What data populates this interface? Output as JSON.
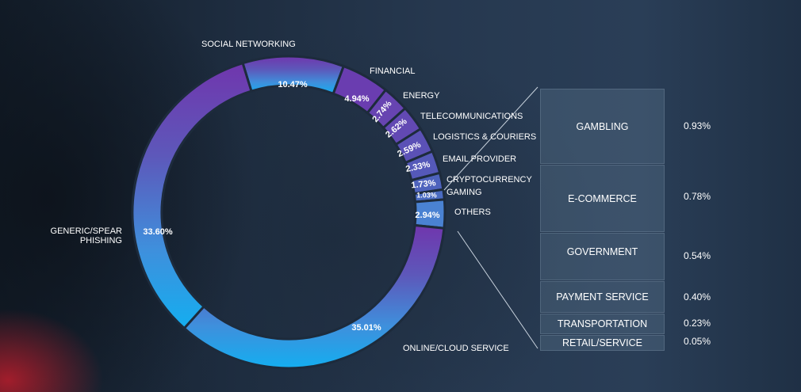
{
  "chart_data": {
    "type": "pie",
    "variant": "donut",
    "slices": [
      {
        "label": "SOCIAL NETWORKING",
        "value": 10.47,
        "color": "#6e3ab0"
      },
      {
        "label": "FINANCIAL",
        "value": 4.94,
        "color": "#6a3db0"
      },
      {
        "label": "ENERGY",
        "value": 2.74,
        "color": "#6744b1"
      },
      {
        "label": "TELECOMMUNICATIONS",
        "value": 2.62,
        "color": "#6249b3"
      },
      {
        "label": "LOGISTICS & COURIERS",
        "value": 2.59,
        "color": "#5b51b6"
      },
      {
        "label": "EMAIL PROVIDER",
        "value": 2.33,
        "color": "#5559b9"
      },
      {
        "label": "CRYPTOCURRENCY",
        "value": 1.73,
        "color": "#4e63bd"
      },
      {
        "label": "GAMING",
        "value": 1.03,
        "color": "#4a6bc1"
      },
      {
        "label": "OTHERS",
        "value": 2.94,
        "color": "#4a82d2"
      },
      {
        "label": "ONLINE/CLOUD SERVICE",
        "value": 35.01,
        "color": "#1aa3e8"
      },
      {
        "label": "GENERIC/SPEAR PHISHING",
        "value": 33.6,
        "color": "#4a8edb"
      }
    ],
    "others_breakdown": [
      {
        "label": "GAMBLING",
        "value": "0.93%"
      },
      {
        "label": "E-COMMERCE",
        "value": "0.78%"
      },
      {
        "label": "GOVERNMENT",
        "value": "0.54%"
      },
      {
        "label": "PAYMENT SERVICE",
        "value": "0.40%"
      },
      {
        "label": "TRANSPORTATION",
        "value": "0.23%"
      },
      {
        "label": "RETAIL/SERVICE",
        "value": "0.05%"
      }
    ],
    "percent_labels": [
      "10.47%",
      "4.94%",
      "2.74%",
      "2.62%",
      "2.59%",
      "2.33%",
      "1.73%",
      "1.03%",
      "2.94%",
      "35.01%",
      "33.60%"
    ],
    "category_labels": [
      "SOCIAL NETWORKING",
      "FINANCIAL",
      "ENERGY",
      "TELECOMMUNICATIONS",
      "LOGISTICS & COURIERS",
      "EMAIL PROVIDER",
      "CRYPTOCURRENCY",
      "GAMING",
      "OTHERS",
      "ONLINE/CLOUD SERVICE",
      "GENERIC/SPEAR",
      "PHISHING"
    ]
  }
}
